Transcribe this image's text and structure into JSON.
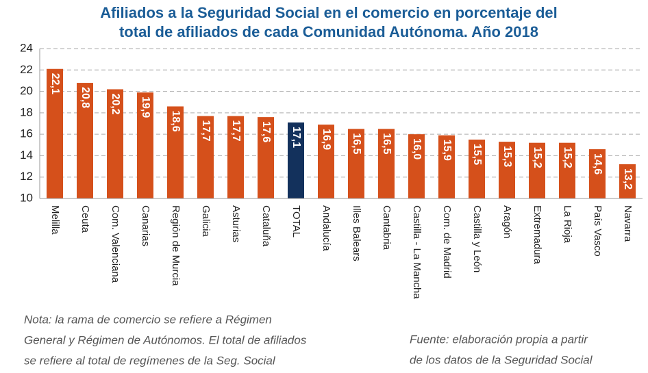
{
  "chart_data": {
    "type": "bar",
    "title": [
      "Afiliados a la Seguridad Social en el comercio en porcentaje del",
      "total de afiliados de cada Comunidad Autónoma. Año 2018"
    ],
    "categories": [
      "Melilla",
      "Ceuta",
      "Com. Valenciana",
      "Canarias",
      "Región de Murcia",
      "Galicia",
      "Asturias",
      "Cataluña",
      "TOTAL",
      "Andalucía",
      "Illes Balears",
      "Cantabria",
      "Castilla - La Mancha",
      "Com. de Madrid",
      "Castilla y León",
      "Aragón",
      "Extremadura",
      "La Rioja",
      "País Vasco",
      "Navarra"
    ],
    "values": [
      22.1,
      20.8,
      20.2,
      19.9,
      18.6,
      17.7,
      17.7,
      17.6,
      17.1,
      16.9,
      16.5,
      16.5,
      16.0,
      15.9,
      15.5,
      15.3,
      15.2,
      15.2,
      14.6,
      13.2
    ],
    "value_labels": [
      "22,1",
      "20,8",
      "20,2",
      "19,9",
      "18,6",
      "17,7",
      "17,7",
      "17,6",
      "17,1",
      "16,9",
      "16,5",
      "16,5",
      "16,0",
      "15,9",
      "15,5",
      "15,3",
      "15,2",
      "15,2",
      "14,6",
      "13,2"
    ],
    "colors": [
      "#d5501b",
      "#d5501b",
      "#d5501b",
      "#d5501b",
      "#d5501b",
      "#d5501b",
      "#d5501b",
      "#d5501b",
      "#13315c",
      "#d5501b",
      "#d5501b",
      "#d5501b",
      "#d5501b",
      "#d5501b",
      "#d5501b",
      "#d5501b",
      "#d5501b",
      "#d5501b",
      "#d5501b",
      "#d5501b"
    ],
    "ylim": [
      10,
      24
    ],
    "yticks": [
      10,
      12,
      14,
      16,
      18,
      20,
      22,
      24
    ],
    "grid": true,
    "annotations": {
      "note": [
        "Nota: la rama de comercio se refiere a Régimen",
        "General y Régimen de Autónomos. El total de afiliados",
        "se refiere al total de regímenes de la Seg. Social"
      ],
      "source": [
        "Fuente: elaboración propia a partir",
        "de los datos de la Seguridad Social"
      ]
    }
  }
}
